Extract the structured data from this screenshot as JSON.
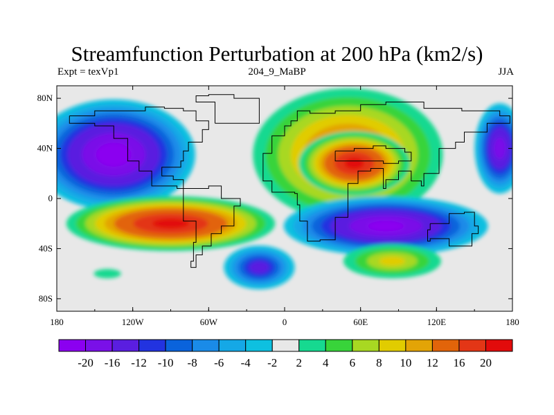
{
  "chart_data": {
    "type": "heatmap",
    "title": "Streamfunction Perturbation at 200 hPa (km2/s)",
    "subtitle_left": "Expt = texVp1",
    "subtitle_center": "204_9_MaBP",
    "subtitle_right": "JJA",
    "x_range": [
      -180,
      180
    ],
    "y_range": [
      -90,
      90
    ],
    "x_ticks": [
      {
        "value": -180,
        "label": "180"
      },
      {
        "value": -120,
        "label": "120W"
      },
      {
        "value": -60,
        "label": "60W"
      },
      {
        "value": 0,
        "label": "0"
      },
      {
        "value": 60,
        "label": "60E"
      },
      {
        "value": 120,
        "label": "120E"
      },
      {
        "value": 180,
        "label": "180"
      }
    ],
    "y_ticks": [
      {
        "value": 80,
        "label": "80N"
      },
      {
        "value": 40,
        "label": "40N"
      },
      {
        "value": 0,
        "label": "0"
      },
      {
        "value": -40,
        "label": "40S"
      },
      {
        "value": -80,
        "label": "80S"
      }
    ],
    "colorbar": {
      "levels": [
        -20,
        -16,
        -12,
        -10,
        -8,
        -6,
        -4,
        -2,
        2,
        4,
        6,
        8,
        10,
        12,
        16,
        20
      ],
      "colors": [
        "#8b00f0",
        "#7a10e8",
        "#5a1ee0",
        "#2233e0",
        "#0a63dc",
        "#1a8be8",
        "#15a8e6",
        "#0ec0e0",
        "#e8e8e8",
        "#16d990",
        "#38d43a",
        "#a8d822",
        "#e1cc00",
        "#e3a406",
        "#e2640a",
        "#e33616",
        "#e20b0b"
      ]
    },
    "anomaly_centers": [
      {
        "lon": -135,
        "lat": 35,
        "value": -22
      },
      {
        "lon": 170,
        "lat": 40,
        "value": -18
      },
      {
        "lon": 50,
        "lat": 35,
        "value": 15
      },
      {
        "lon": 55,
        "lat": 28,
        "value": 21
      },
      {
        "lon": -90,
        "lat": -20,
        "value": 21
      },
      {
        "lon": 80,
        "lat": -22,
        "value": -21
      },
      {
        "lon": -20,
        "lat": -55,
        "value": -14
      },
      {
        "lon": 85,
        "lat": -50,
        "value": 9
      },
      {
        "lon": -140,
        "lat": -60,
        "value": 3
      }
    ]
  }
}
